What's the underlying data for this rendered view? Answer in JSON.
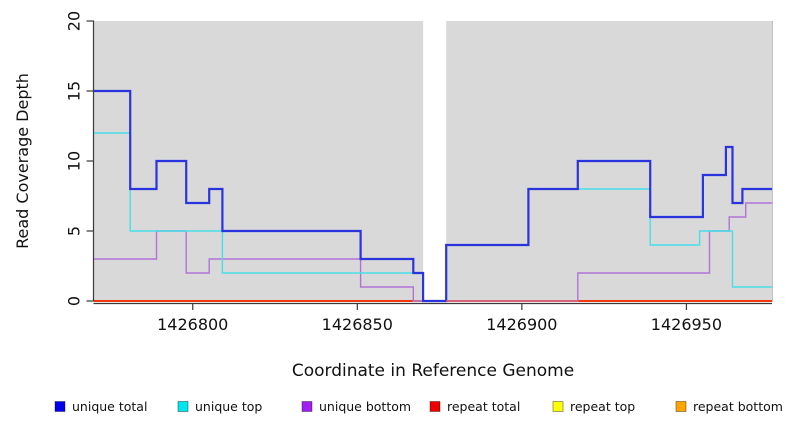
{
  "figure": {
    "x_axis_title": "Coordinate in Reference Genome",
    "y_axis_title": "Read Coverage Depth"
  },
  "chart_data": {
    "type": "line",
    "subtype": "step",
    "title": "",
    "xlabel": "Coordinate in Reference Genome",
    "ylabel": "Read Coverage Depth",
    "xlim": [
      1426770,
      1426976
    ],
    "ylim": [
      0,
      20
    ],
    "x_ticks": [
      "1426800",
      "1426850",
      "1426900",
      "1426950"
    ],
    "x_tick_values": [
      1426800,
      1426850,
      1426900,
      1426950
    ],
    "y_ticks": [
      "0",
      "5",
      "10",
      "15",
      "20"
    ],
    "y_tick_values": [
      0,
      5,
      10,
      15,
      20
    ],
    "grid": false,
    "legend_position": "bottom",
    "plot_background": "#d9d9d9",
    "gap_region": {
      "from": 1426870,
      "to": 1426877,
      "color": "#ffffff"
    },
    "series": [
      {
        "name": "unique total",
        "color": "#2b33dd",
        "legend_color": "#0000ee",
        "width": 2.2,
        "steps": [
          [
            1426770,
            15
          ],
          [
            1426781,
            8
          ],
          [
            1426789,
            10
          ],
          [
            1426798,
            7
          ],
          [
            1426805,
            8
          ],
          [
            1426809,
            5
          ],
          [
            1426851,
            3
          ],
          [
            1426867,
            2
          ],
          [
            1426870,
            0
          ],
          [
            1426877,
            4
          ],
          [
            1426902,
            8
          ],
          [
            1426917,
            10
          ],
          [
            1426939,
            6
          ],
          [
            1426955,
            9
          ],
          [
            1426962,
            11
          ],
          [
            1426964,
            7
          ],
          [
            1426967,
            8
          ]
        ]
      },
      {
        "name": "unique top",
        "color": "#45dfe8",
        "legend_color": "#00e5ee",
        "width": 1.4,
        "steps": [
          [
            1426770,
            12
          ],
          [
            1426781,
            5
          ],
          [
            1426809,
            2
          ],
          [
            1426870,
            0
          ],
          [
            1426877,
            4
          ],
          [
            1426902,
            8
          ],
          [
            1426939,
            4
          ],
          [
            1426954,
            5
          ],
          [
            1426964,
            1
          ]
        ]
      },
      {
        "name": "unique bottom",
        "color": "#b173d8",
        "legend_color": "#a020f0",
        "width": 1.4,
        "steps": [
          [
            1426770,
            3
          ],
          [
            1426789,
            5
          ],
          [
            1426798,
            2
          ],
          [
            1426805,
            3
          ],
          [
            1426851,
            1
          ],
          [
            1426867,
            0
          ],
          [
            1426917,
            2
          ],
          [
            1426957,
            5
          ],
          [
            1426963,
            6
          ],
          [
            1426968,
            7
          ]
        ]
      },
      {
        "name": "repeat total",
        "color": "#ee0000",
        "legend_color": "#ee0000",
        "width": 1.4,
        "break_at_gap": true,
        "steps": [
          [
            1426770,
            0
          ]
        ]
      },
      {
        "name": "repeat top",
        "color": "#ffff00",
        "legend_color": "#ffff00",
        "width": 1.4,
        "break_at_gap": true,
        "steps": [
          [
            1426770,
            0
          ]
        ]
      },
      {
        "name": "repeat bottom",
        "color": "#ff9f1a",
        "legend_color": "#ffa500",
        "width": 1.6,
        "break_at_gap": true,
        "steps": [
          [
            1426770,
            0
          ]
        ]
      }
    ],
    "overlap_highlights": [
      {
        "from": 1426877,
        "to": 1426917,
        "value": 0,
        "color": "#dd5f7d",
        "width": 1.6,
        "note": "unique-bottom zero line rendered over repeat-bottom line"
      }
    ]
  },
  "legend": {
    "items": [
      {
        "label": "unique total",
        "color": "#0000ee"
      },
      {
        "label": "unique top",
        "color": "#00e5ee"
      },
      {
        "label": "unique bottom",
        "color": "#a020f0"
      },
      {
        "label": "repeat total",
        "color": "#ee0000"
      },
      {
        "label": "repeat top",
        "color": "#ffff00"
      },
      {
        "label": "repeat bottom",
        "color": "#ffa500"
      }
    ]
  }
}
